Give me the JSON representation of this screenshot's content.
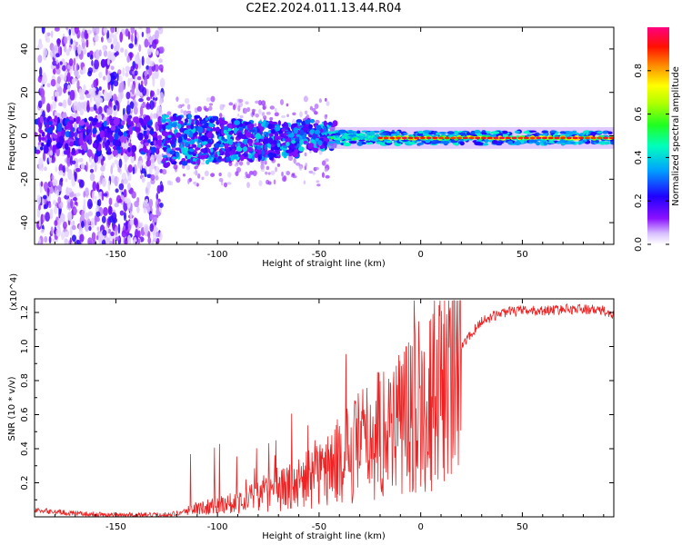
{
  "title": "C2E2.2024.011.13.44.R04",
  "chart_data": [
    {
      "type": "heatmap",
      "name": "spectrogram",
      "xlabel": "Height of straight line (km)",
      "ylabel": "Frequency (Hz)",
      "xlim": [
        -190,
        95
      ],
      "ylim": [
        -50,
        50
      ],
      "xticks": [
        -150,
        -100,
        -50,
        0,
        50
      ],
      "yticks": [
        -40,
        -20,
        0,
        20,
        40
      ],
      "colorbar": {
        "label": "Normalized spectral amplitude",
        "range": [
          0,
          1
        ],
        "ticks": [
          "0.0",
          "0.2",
          "0.4",
          "0.6",
          "0.8"
        ],
        "colors": [
          "#ffffff",
          "#c8a0ff",
          "#7a00ff",
          "#0000ff",
          "#00c8ff",
          "#00ff80",
          "#80ff00",
          "#ffff00",
          "#ff8000",
          "#ff0000",
          "#ff0080"
        ]
      },
      "regions": [
        {
          "x_range": [
            -190,
            -127
          ],
          "description": "broadband scattered energy",
          "freq_spread": [
            -50,
            50
          ],
          "peak_amplitude": 0.25
        },
        {
          "x_range": [
            -127,
            -45
          ],
          "description": "band near 0 Hz",
          "freq_center": 0,
          "freq_spread": [
            -12,
            10
          ],
          "peak_amplitude": 0.4
        },
        {
          "x_range": [
            -45,
            95
          ],
          "description": "narrow band near 0 Hz",
          "freq_center": -1,
          "freq_spread": [
            -4,
            3
          ],
          "peak_amplitude": 0.9
        }
      ]
    },
    {
      "type": "line",
      "name": "snr",
      "xlabel": "Height of straight line (km)",
      "ylabel": "SNR (10 * v/v)",
      "y_multiplier": "(x10^4)",
      "xlim": [
        -190,
        95
      ],
      "ylim": [
        0,
        1.28
      ],
      "xticks": [
        -150,
        -100,
        -50,
        0,
        50
      ],
      "yticks": [
        0.2,
        0.4,
        0.6,
        0.8,
        1.0,
        1.2
      ],
      "color": "#ee2222",
      "series_envelope": {
        "x": [
          -190,
          -170,
          -150,
          -130,
          -120,
          -110,
          -100,
          -90,
          -80,
          -70,
          -60,
          -50,
          -40,
          -30,
          -20,
          -10,
          0,
          10,
          20,
          30,
          40,
          50,
          60,
          70,
          80,
          90,
          95
        ],
        "y": [
          0.04,
          0.02,
          0.01,
          0.01,
          0.02,
          0.05,
          0.07,
          0.09,
          0.12,
          0.15,
          0.2,
          0.25,
          0.33,
          0.42,
          0.5,
          0.58,
          0.66,
          0.78,
          1.0,
          1.15,
          1.2,
          1.21,
          1.21,
          1.22,
          1.22,
          1.21,
          1.18
        ]
      }
    }
  ]
}
